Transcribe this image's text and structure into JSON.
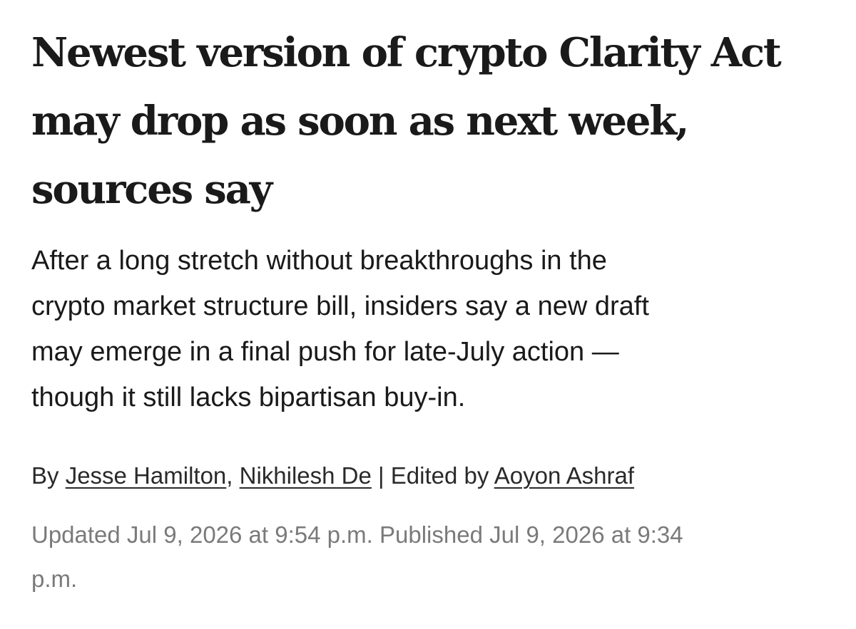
{
  "headline": {
    "lines": [
      "Newest version of crypto Clarity Act",
      "may drop as soon as next week,",
      "sources say"
    ]
  },
  "dek": {
    "lines": [
      "After a long stretch without breakthroughs in the",
      "crypto market structure bill, insiders say a new draft",
      "may emerge in a final push for late-July action —",
      "though it still lacks bipartisan buy-in."
    ]
  },
  "byline": {
    "prefix": "By ",
    "authors": [
      "Jesse Hamilton",
      "Nikhilesh De"
    ],
    "separator": ", ",
    "edited_prefix": " | Edited by ",
    "editor": "Aoyon Ashraf"
  },
  "timestamps": {
    "lines": [
      "Updated Jul 9, 2026 at 9:54 p.m. Published Jul 9, 2026 at 9:34",
      "p.m."
    ]
  }
}
